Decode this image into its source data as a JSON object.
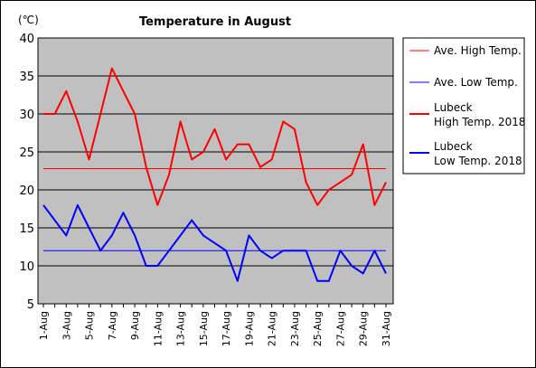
{
  "chart_data": {
    "type": "line",
    "title": "Temperature in August",
    "unit_label": "(℃)",
    "xlabel": "",
    "ylabel": "",
    "ylim": [
      5,
      40
    ],
    "yticks": [
      5,
      10,
      15,
      20,
      25,
      30,
      35,
      40
    ],
    "grid": true,
    "legend_position": "right",
    "plot_background": "#c0c0c0",
    "categories": [
      "1-Aug",
      "2-Aug",
      "3-Aug",
      "4-Aug",
      "5-Aug",
      "6-Aug",
      "7-Aug",
      "8-Aug",
      "9-Aug",
      "10-Aug",
      "11-Aug",
      "12-Aug",
      "13-Aug",
      "14-Aug",
      "15-Aug",
      "16-Aug",
      "17-Aug",
      "18-Aug",
      "19-Aug",
      "20-Aug",
      "21-Aug",
      "22-Aug",
      "23-Aug",
      "24-Aug",
      "25-Aug",
      "26-Aug",
      "27-Aug",
      "28-Aug",
      "29-Aug",
      "30-Aug",
      "31-Aug"
    ],
    "tick_labels": [
      "1-Aug",
      "3-Aug",
      "5-Aug",
      "7-Aug",
      "9-Aug",
      "11-Aug",
      "13-Aug",
      "15-Aug",
      "17-Aug",
      "19-Aug",
      "21-Aug",
      "23-Aug",
      "25-Aug",
      "27-Aug",
      "29-Aug",
      "31-Aug"
    ],
    "series": [
      {
        "name": "Ave. High Temp.",
        "color": "#ff0000",
        "width": 1,
        "values": [
          22.8,
          22.8,
          22.8,
          22.8,
          22.8,
          22.8,
          22.8,
          22.8,
          22.8,
          22.8,
          22.8,
          22.8,
          22.8,
          22.8,
          22.8,
          22.8,
          22.8,
          22.8,
          22.8,
          22.8,
          22.8,
          22.8,
          22.8,
          22.8,
          22.8,
          22.8,
          22.8,
          22.8,
          22.8,
          22.8,
          22.8
        ]
      },
      {
        "name": "Ave. Low Temp.",
        "color": "#0000ff",
        "width": 1,
        "values": [
          12,
          12,
          12,
          12,
          12,
          12,
          12,
          12,
          12,
          12,
          12,
          12,
          12,
          12,
          12,
          12,
          12,
          12,
          12,
          12,
          12,
          12,
          12,
          12,
          12,
          12,
          12,
          12,
          12,
          12,
          12
        ]
      },
      {
        "name": "Lubeck High Temp. 2018",
        "legend_lines": [
          "Lubeck",
          "High Temp. 2018"
        ],
        "color": "#ff0000",
        "width": 2,
        "values": [
          30,
          30,
          33,
          29,
          24,
          30,
          36,
          33,
          30,
          23,
          18,
          22,
          29,
          24,
          25,
          28,
          24,
          26,
          26,
          23,
          24,
          29,
          28,
          21,
          18,
          20,
          21,
          22,
          26,
          18,
          21
        ]
      },
      {
        "name": "Lubeck Low Temp. 2018",
        "legend_lines": [
          "Lubeck",
          "Low Temp. 2018"
        ],
        "color": "#0000ff",
        "width": 2,
        "values": [
          18,
          16,
          14,
          18,
          15,
          12,
          14,
          17,
          14,
          10,
          10,
          12,
          14,
          16,
          14,
          13,
          12,
          8,
          14,
          12,
          11,
          12,
          12,
          12,
          8,
          8,
          12,
          10,
          9,
          12,
          9
        ]
      }
    ]
  }
}
